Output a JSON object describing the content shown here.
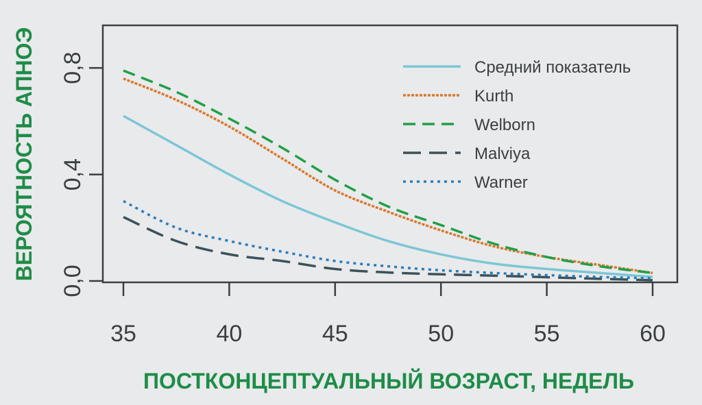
{
  "chart_data": {
    "type": "line",
    "xlabel": "ПОСТКОНЦЕПТУАЛЬНЫЙ ВОЗРАСТ, НЕДЕЛЬ",
    "ylabel": "ВЕРОЯТНОСТЬ АПНОЭ",
    "xlim": [
      35,
      60
    ],
    "ylim": [
      0,
      0.96
    ],
    "x_ticks": [
      35,
      40,
      45,
      50,
      55,
      60
    ],
    "x_tick_labels": [
      "35",
      "40",
      "45",
      "50",
      "55",
      "60"
    ],
    "y_ticks": [
      0,
      0.4,
      0.8
    ],
    "y_tick_labels": [
      "0,0",
      "0,4",
      "0,8"
    ],
    "legend_position": "top-right",
    "x": [
      35,
      37.5,
      40,
      42.5,
      45,
      47.5,
      50,
      52.5,
      55,
      57.5,
      60
    ],
    "series": [
      {
        "name": "Средний показатель",
        "color": "#7cc6d6",
        "style": "solid",
        "values": [
          0.62,
          0.51,
          0.4,
          0.3,
          0.22,
          0.15,
          0.1,
          0.065,
          0.045,
          0.03,
          0.015
        ]
      },
      {
        "name": "Kurth",
        "color": "#d9782b",
        "style": "dotted-dense",
        "values": [
          0.76,
          0.68,
          0.58,
          0.46,
          0.34,
          0.26,
          0.19,
          0.13,
          0.09,
          0.06,
          0.03
        ]
      },
      {
        "name": "Welborn",
        "color": "#1fa046",
        "style": "dashed",
        "values": [
          0.79,
          0.71,
          0.61,
          0.5,
          0.38,
          0.28,
          0.21,
          0.14,
          0.09,
          0.055,
          0.03
        ]
      },
      {
        "name": "Malviya",
        "color": "#3b5258",
        "style": "long-dashed",
        "values": [
          0.24,
          0.15,
          0.1,
          0.075,
          0.045,
          0.032,
          0.025,
          0.02,
          0.014,
          0.008,
          0.003
        ]
      },
      {
        "name": "Warner",
        "color": "#2c7bb8",
        "style": "dotted",
        "values": [
          0.3,
          0.2,
          0.15,
          0.11,
          0.075,
          0.055,
          0.04,
          0.03,
          0.022,
          0.015,
          0.01
        ]
      }
    ]
  }
}
